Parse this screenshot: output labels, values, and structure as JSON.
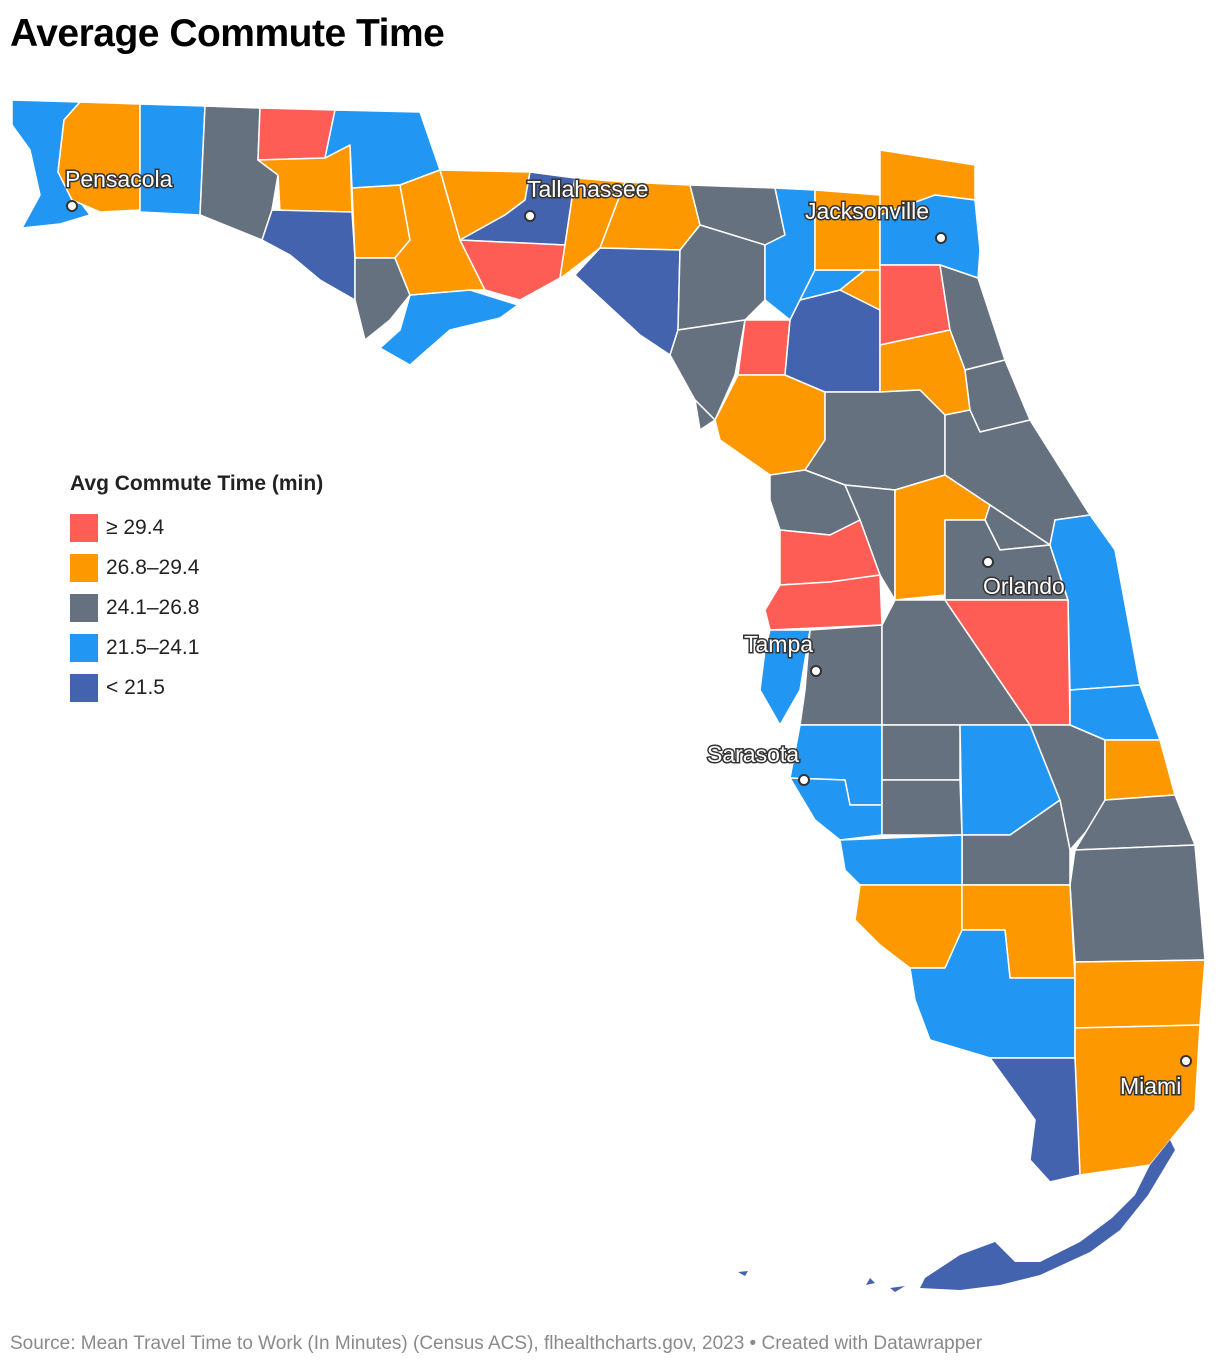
{
  "title": "Average Commute Time",
  "legend": {
    "title": "Avg Commute Time (min)",
    "items": [
      {
        "label": "≥ 29.4",
        "color": "#fd5d55"
      },
      {
        "label": "26.8–29.4",
        "color": "#fe9800"
      },
      {
        "label": "24.1–26.8",
        "color": "#66717f"
      },
      {
        "label": "21.5–24.1",
        "color": "#2196f3"
      },
      {
        "label": "< 21.5",
        "color": "#4363ae"
      }
    ]
  },
  "cities": [
    "Pensacola",
    "Tallahassee",
    "Jacksonville",
    "Orlando",
    "Tampa",
    "Sarasota",
    "Miami"
  ],
  "footer": "Source: Mean Travel Time to Work (In Minutes) (Census ACS), flhealthcharts.gov, 2023 • Created with Datawrapper"
}
